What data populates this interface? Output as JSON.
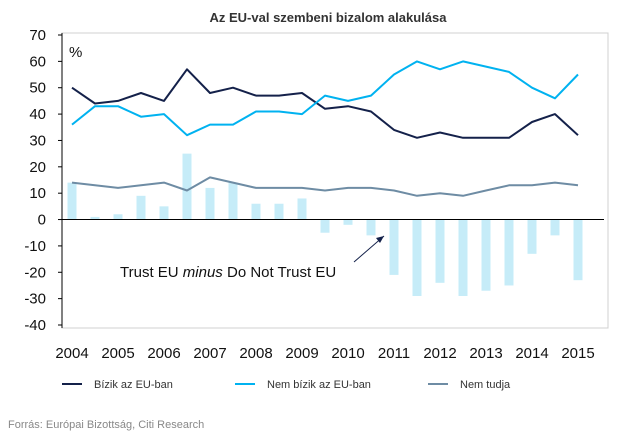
{
  "chart_data": {
    "type": "bar+line",
    "title": "Az EU-val szembeni bizalom alakulása",
    "ylabel": "%",
    "xlabel": "",
    "ylim": [
      -40,
      70
    ],
    "yticks": [
      -40,
      -30,
      -20,
      -10,
      0,
      10,
      20,
      30,
      40,
      50,
      60,
      70
    ],
    "ytick_labels": [
      "-40",
      "-30",
      "-20",
      "-10",
      "0",
      "10",
      "20",
      "30",
      "40",
      "50",
      "60",
      "70"
    ],
    "xlim": [
      2004,
      2015
    ],
    "year_labels": [
      "2004",
      "2005",
      "2006",
      "2007",
      "2008",
      "2009",
      "2010",
      "2011",
      "2012",
      "2013",
      "2014",
      "2015"
    ],
    "x": [
      2004.0,
      2004.5,
      2005.0,
      2005.5,
      2006.0,
      2006.5,
      2007.0,
      2007.5,
      2008.0,
      2008.5,
      2009.0,
      2009.5,
      2010.0,
      2010.5,
      2011.0,
      2011.5,
      2012.0,
      2012.5,
      2013.0,
      2013.5,
      2014.0,
      2014.5,
      2015.0
    ],
    "series": [
      {
        "name": "Bízik az EU-ban",
        "kind": "line",
        "color": "#14214a",
        "values": [
          50,
          44,
          45,
          48,
          45,
          57,
          48,
          50,
          47,
          47,
          48,
          42,
          43,
          41,
          34,
          31,
          33,
          31,
          31,
          31,
          37,
          40,
          32
        ]
      },
      {
        "name": "Nem bízik az EU-ban",
        "kind": "line",
        "color": "#00b2f0",
        "values": [
          36,
          43,
          43,
          39,
          40,
          32,
          36,
          36,
          41,
          41,
          40,
          47,
          45,
          47,
          55,
          60,
          57,
          60,
          58,
          56,
          50,
          46,
          55
        ]
      },
      {
        "name": "Nem tudja",
        "kind": "line",
        "color": "#6e8ca4",
        "values": [
          14,
          13,
          12,
          13,
          14,
          11,
          16,
          14,
          12,
          12,
          12,
          11,
          12,
          12,
          11,
          9,
          10,
          9,
          11,
          13,
          13,
          14,
          13
        ]
      },
      {
        "name": "Trust EU minus Do Not Trust EU",
        "kind": "bar",
        "color": "#c6ecf8",
        "values": [
          14,
          1,
          2,
          9,
          5,
          25,
          12,
          14,
          6,
          6,
          8,
          -5,
          -2,
          -6,
          -21,
          -29,
          -24,
          -29,
          -27,
          -25,
          -13,
          -6,
          -23
        ]
      }
    ],
    "annotation": {
      "parts": [
        "Trust EU ",
        "minus",
        " Do Not Trust EU"
      ]
    },
    "source": "Forrás: Európai Bizottság, Citi Research"
  }
}
